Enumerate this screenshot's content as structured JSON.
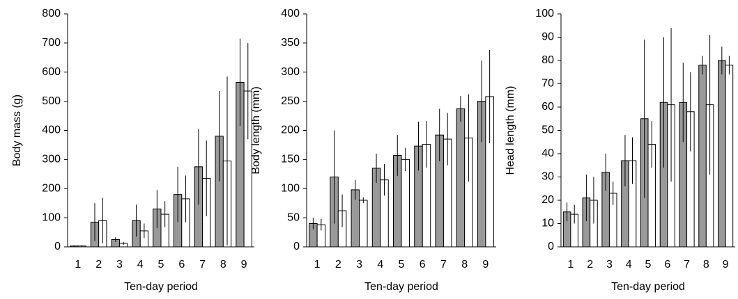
{
  "chart_data": [
    {
      "type": "bar",
      "x_label": "Ten-day period",
      "y_label": "Body mass (g)",
      "categories": [
        "1",
        "2",
        "3",
        "4",
        "5",
        "6",
        "7",
        "8",
        "9"
      ],
      "ylim": [
        0,
        800
      ],
      "yticks": [
        0,
        100,
        200,
        300,
        400,
        500,
        600,
        700,
        800
      ],
      "series": [
        {
          "color": "#999999",
          "values": [
            3,
            85,
            25,
            90,
            130,
            180,
            275,
            380,
            565
          ],
          "errors": [
            2,
            65,
            8,
            55,
            65,
            95,
            130,
            155,
            150
          ]
        },
        {
          "color": "#ffffff",
          "values": [
            3,
            90,
            12,
            55,
            112,
            165,
            235,
            295,
            535
          ],
          "errors": [
            2,
            78,
            5,
            25,
            45,
            80,
            130,
            290,
            165
          ]
        }
      ]
    },
    {
      "type": "bar",
      "x_label": "Ten-day period",
      "y_label": "Body length (mm)",
      "categories": [
        "1",
        "2",
        "3",
        "4",
        "5",
        "6",
        "7",
        "8",
        "9"
      ],
      "ylim": [
        0,
        400
      ],
      "yticks": [
        0,
        50,
        100,
        150,
        200,
        250,
        300,
        350,
        400
      ],
      "series": [
        {
          "color": "#999999",
          "values": [
            40,
            120,
            98,
            135,
            157,
            173,
            192,
            237,
            250
          ],
          "errors": [
            10,
            80,
            17,
            25,
            35,
            42,
            45,
            22,
            70
          ]
        },
        {
          "color": "#ffffff",
          "values": [
            38,
            62,
            80,
            115,
            150,
            176,
            185,
            187,
            258
          ],
          "errors": [
            10,
            28,
            5,
            27,
            20,
            40,
            45,
            75,
            80
          ]
        }
      ]
    },
    {
      "type": "bar",
      "x_label": "Ten-day period",
      "y_label": "Head length (mm)",
      "categories": [
        "1",
        "2",
        "3",
        "4",
        "5",
        "6",
        "7",
        "8",
        "9"
      ],
      "ylim": [
        0,
        100
      ],
      "yticks": [
        0,
        10,
        20,
        30,
        40,
        50,
        60,
        70,
        80,
        90,
        100
      ],
      "series": [
        {
          "color": "#999999",
          "values": [
            15,
            21,
            32,
            37,
            55,
            62,
            62,
            78,
            80
          ],
          "errors": [
            4,
            10,
            8,
            11,
            34,
            28,
            17,
            4,
            6
          ]
        },
        {
          "color": "#ffffff",
          "values": [
            14,
            20,
            23,
            37,
            44,
            61,
            58,
            61,
            78
          ],
          "errors": [
            4,
            10,
            5,
            10,
            10,
            33,
            17,
            30,
            4
          ]
        }
      ]
    }
  ]
}
